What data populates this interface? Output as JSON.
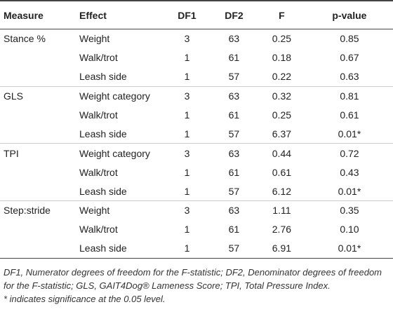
{
  "table": {
    "header": [
      "Measure",
      "Effect",
      "DF1",
      "DF2",
      "F",
      "p-value"
    ],
    "groups": [
      {
        "measure": "Stance %",
        "rows": [
          [
            "Weight",
            "3",
            "63",
            "0.25",
            "0.85"
          ],
          [
            "Walk/trot",
            "1",
            "61",
            "0.18",
            "0.67"
          ],
          [
            "Leash side",
            "1",
            "57",
            "0.22",
            "0.63"
          ]
        ]
      },
      {
        "measure": "GLS",
        "rows": [
          [
            "Weight category",
            "3",
            "63",
            "0.32",
            "0.81"
          ],
          [
            "Walk/trot",
            "1",
            "61",
            "0.25",
            "0.61"
          ],
          [
            "Leash side",
            "1",
            "57",
            "6.37",
            "0.01*"
          ]
        ]
      },
      {
        "measure": "TPI",
        "rows": [
          [
            "Weight category",
            "3",
            "63",
            "0.44",
            "0.72"
          ],
          [
            "Walk/trot",
            "1",
            "61",
            "0.61",
            "0.43"
          ],
          [
            "Leash side",
            "1",
            "57",
            "6.12",
            "0.01*"
          ]
        ]
      },
      {
        "measure": "Step:stride",
        "rows": [
          [
            "Weight",
            "3",
            "63",
            "1.11",
            "0.35"
          ],
          [
            "Walk/trot",
            "1",
            "61",
            "2.76",
            "0.10"
          ],
          [
            "Leash side",
            "1",
            "57",
            "6.91",
            "0.01*"
          ]
        ]
      }
    ]
  },
  "footnotes": [
    "DF1, Numerator degrees of freedom for the F-statistic; DF2, Denominator degrees of freedom for the F-statistic; GLS, GAIT4Dog® Lameness Score; TPI, Total Pressure Index.",
    "* indicates significance at the 0.05 level."
  ]
}
